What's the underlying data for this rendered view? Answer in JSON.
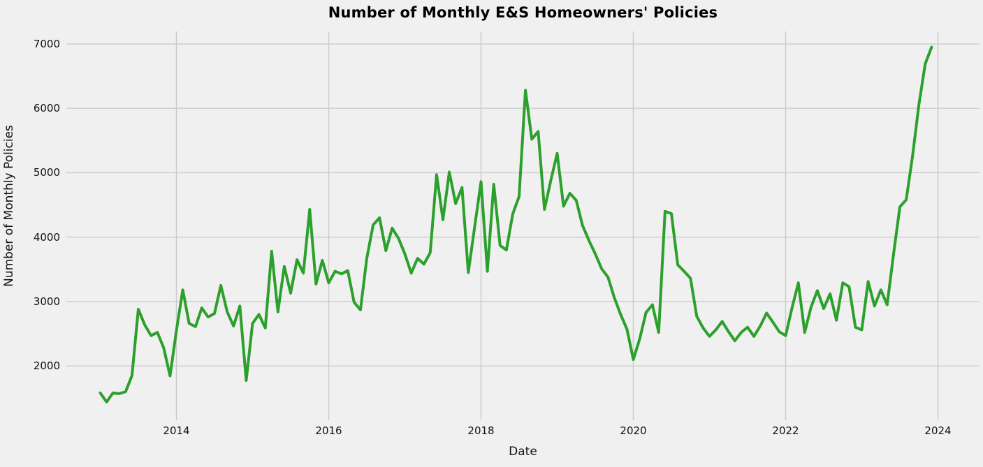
{
  "page": {
    "background_color": "#f0f0f0"
  },
  "chart": {
    "title": "Number of Monthly E&S Homeowners' Policies",
    "xlabel": "Date",
    "ylabel": "Number of Monthly Policies"
  },
  "chart_data": {
    "type": "line",
    "title": "Number of Monthly E&S Homeowners' Policies",
    "xlabel": "Date",
    "ylabel": "Number of Monthly Policies",
    "legend": null,
    "grid": true,
    "background_color": "#f0f0f0",
    "grid_color": "#cbcbcb",
    "line_color": "#2ca02c",
    "line_width": 4,
    "ylim": [
      1300,
      7200
    ],
    "y_ticks": [
      2000,
      3000,
      4000,
      5000,
      6000,
      7000
    ],
    "x_tick_years": [
      2014,
      2016,
      2018,
      2020,
      2022,
      2024
    ],
    "x_start_year": 2013,
    "x": [
      "2013-01",
      "2013-02",
      "2013-03",
      "2013-04",
      "2013-05",
      "2013-06",
      "2013-07",
      "2013-08",
      "2013-09",
      "2013-10",
      "2013-11",
      "2013-12",
      "2014-01",
      "2014-02",
      "2014-03",
      "2014-04",
      "2014-05",
      "2014-06",
      "2014-07",
      "2014-08",
      "2014-09",
      "2014-10",
      "2014-11",
      "2014-12",
      "2015-01",
      "2015-02",
      "2015-03",
      "2015-04",
      "2015-05",
      "2015-06",
      "2015-07",
      "2015-08",
      "2015-09",
      "2015-10",
      "2015-11",
      "2015-12",
      "2016-01",
      "2016-02",
      "2016-03",
      "2016-04",
      "2016-05",
      "2016-06",
      "2016-07",
      "2016-08",
      "2016-09",
      "2016-10",
      "2016-11",
      "2016-12",
      "2017-01",
      "2017-02",
      "2017-03",
      "2017-04",
      "2017-05",
      "2017-06",
      "2017-07",
      "2017-08",
      "2017-09",
      "2017-10",
      "2017-11",
      "2017-12",
      "2018-01",
      "2018-02",
      "2018-03",
      "2018-04",
      "2018-05",
      "2018-06",
      "2018-07",
      "2018-08",
      "2018-09",
      "2018-10",
      "2018-11",
      "2018-12",
      "2019-01",
      "2019-02",
      "2019-03",
      "2019-04",
      "2019-05",
      "2019-06",
      "2019-07",
      "2019-08",
      "2019-09",
      "2019-10",
      "2019-11",
      "2019-12",
      "2020-01",
      "2020-02",
      "2020-03",
      "2020-04",
      "2020-05",
      "2020-06",
      "2020-07",
      "2020-08",
      "2020-09",
      "2020-10",
      "2020-11",
      "2020-12",
      "2021-01",
      "2021-02",
      "2021-03",
      "2021-04",
      "2021-05",
      "2021-06",
      "2021-07",
      "2021-08",
      "2021-09",
      "2021-10",
      "2021-11",
      "2021-12",
      "2022-01",
      "2022-02",
      "2022-03",
      "2022-04",
      "2022-05",
      "2022-06",
      "2022-07",
      "2022-08",
      "2022-09",
      "2022-10",
      "2022-11",
      "2022-12",
      "2023-01",
      "2023-02",
      "2023-03",
      "2023-04",
      "2023-05",
      "2023-06",
      "2023-07",
      "2023-08",
      "2023-09",
      "2023-10",
      "2023-11",
      "2023-12"
    ],
    "values": [
      1580,
      1440,
      1580,
      1570,
      1600,
      1850,
      2880,
      2640,
      2470,
      2520,
      2280,
      1845,
      2550,
      3180,
      2660,
      2610,
      2900,
      2760,
      2815,
      3250,
      2840,
      2620,
      2930,
      1775,
      2660,
      2800,
      2590,
      3780,
      2840,
      3545,
      3130,
      3650,
      3440,
      4430,
      3270,
      3640,
      3290,
      3470,
      3430,
      3480,
      2990,
      2870,
      3670,
      4190,
      4300,
      3790,
      4140,
      3980,
      3740,
      3440,
      3670,
      3580,
      3760,
      4970,
      4270,
      5010,
      4520,
      4770,
      3450,
      4160,
      4860,
      3470,
      4820,
      3870,
      3800,
      4360,
      4630,
      6280,
      5520,
      5640,
      4430,
      4880,
      5300,
      4480,
      4680,
      4570,
      4180,
      3950,
      3740,
      3510,
      3380,
      3060,
      2800,
      2570,
      2100,
      2420,
      2830,
      2950,
      2520,
      4400,
      4365,
      3570,
      3470,
      3360,
      2770,
      2590,
      2460,
      2560,
      2690,
      2530,
      2390,
      2520,
      2600,
      2460,
      2620,
      2820,
      2680,
      2530,
      2470,
      2900,
      3290,
      2520,
      2910,
      3170,
      2890,
      3120,
      2710,
      3290,
      3230,
      2600,
      2560,
      3310,
      2930,
      3180,
      2950,
      3730,
      4470,
      4580,
      5260,
      6060,
      6690,
      6950
    ]
  }
}
